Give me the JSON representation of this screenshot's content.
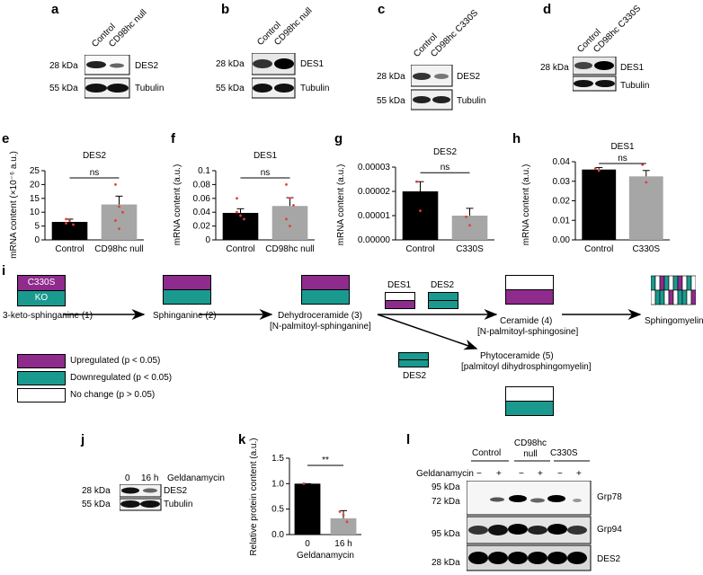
{
  "panels": {
    "a": {
      "letter": "a",
      "lanes": [
        "Control",
        "CD98hc null"
      ],
      "rows": [
        {
          "kda": "28 kDa",
          "protein": "DES2"
        },
        {
          "kda": "55 kDa",
          "protein": "Tubulin"
        }
      ]
    },
    "b": {
      "letter": "b",
      "lanes": [
        "Control",
        "CD98hc null"
      ],
      "rows": [
        {
          "kda": "28 kDa",
          "protein": "DES1"
        },
        {
          "kda": "55 kDa",
          "protein": "Tubulin"
        }
      ]
    },
    "c": {
      "letter": "c",
      "lanes": [
        "Control",
        "CD98hc C330S"
      ],
      "rows": [
        {
          "kda": "28 kDa",
          "protein": "DES2"
        },
        {
          "kda": "55 kDa",
          "protein": "Tubulin"
        }
      ]
    },
    "d": {
      "letter": "d",
      "lanes": [
        "Control",
        "CD98hc C330S"
      ],
      "rows": [
        {
          "kda": "28 kDa",
          "protein": "DES1"
        },
        {
          "kda": "",
          "protein": "Tubulin"
        }
      ]
    },
    "i": {
      "letter": "i",
      "box_c330s": "C330S",
      "box_ko": "KO",
      "steps": [
        "3-keto-sphinganine (1)",
        "Sphinganine (2)",
        "Dehydroceramide (3)",
        "[N-palmitoyl-sphinganine]",
        "Ceramide (4)",
        "[N-palmitoyl-sphingosine]",
        "Phytoceramide (5)",
        "[palmitoyl dihydrosphingomyelin]",
        "Sphingomyelin"
      ],
      "enzymes": {
        "des1": "DES1",
        "des2_top": "DES2",
        "des2_bottom": "DES2"
      },
      "legend": [
        {
          "label": "Upregulated (p < 0.05)",
          "color": "#8e2b8d"
        },
        {
          "label": "Downregulated (p < 0.05)",
          "color": "#1a9a8e"
        },
        {
          "label": "No change (p > 0.05)",
          "color": "#ffffff"
        }
      ]
    },
    "j": {
      "letter": "j",
      "lanes": [
        "0",
        "16 h"
      ],
      "treatment": "Geldanamycin",
      "rows": [
        {
          "kda": "28 kDa",
          "protein": "DES2"
        },
        {
          "kda": "55 kDa",
          "protein": "Tubulin"
        }
      ]
    },
    "l": {
      "letter": "l",
      "groups": [
        "Control",
        "CD98hc null",
        "C330S"
      ],
      "treatment": "Geldanamycin",
      "signs": [
        "−",
        "+",
        "−",
        "+",
        "−",
        "+"
      ],
      "rows": [
        {
          "kda": [
            "95 kDa",
            "72 kDa"
          ],
          "protein": "Grp78"
        },
        {
          "kda": [
            "95 kDa"
          ],
          "protein": "Grp94"
        },
        {
          "kda": [
            "28 kDa"
          ],
          "protein": "DES2"
        }
      ]
    }
  },
  "colors": {
    "purple": "#8e2b8d",
    "teal": "#1a9a8e",
    "bar_black": "#000000",
    "bar_gray": "#a6a6a6",
    "dot_red": "#e0403a"
  },
  "chart_data": [
    {
      "panel": "e",
      "type": "bar",
      "title": "DES2",
      "ylabel": "mRNA content (×10⁻⁶ a.u.)",
      "categories": [
        "Control",
        "CD98hc null"
      ],
      "values": [
        6.5,
        12.8
      ],
      "errors": [
        1.0,
        3.0
      ],
      "ylim": [
        0,
        25
      ],
      "yticks": [
        "0",
        "5",
        "10",
        "15",
        "20",
        "25"
      ],
      "sig": "ns"
    },
    {
      "panel": "f",
      "type": "bar",
      "title": "DES1",
      "ylabel": "mRNA content (a.u.)",
      "categories": [
        "Control",
        "CD98hc null"
      ],
      "values": [
        0.039,
        0.049
      ],
      "errors": [
        0.006,
        0.012
      ],
      "ylim": [
        0,
        0.1
      ],
      "yticks": [
        "0",
        "0.02",
        "0.04",
        "0.06",
        "0.08",
        "0.1"
      ],
      "sig": "ns"
    },
    {
      "panel": "g",
      "type": "bar",
      "title": "DES2",
      "ylabel": "mRNA content (a.u.)",
      "categories": [
        "Control",
        "C330S"
      ],
      "values": [
        2e-05,
        1e-05
      ],
      "errors": [
        4e-06,
        3e-06
      ],
      "ylim": [
        0,
        3e-05
      ],
      "yticks": [
        "0.00000",
        "0.00001",
        "0.00002",
        "0.00003"
      ],
      "sig": "ns"
    },
    {
      "panel": "h",
      "type": "bar",
      "title": "DES1",
      "ylabel": "mRNA content (a.u.)",
      "categories": [
        "Control",
        "C330S"
      ],
      "values": [
        0.036,
        0.0325
      ],
      "errors": [
        0.001,
        0.003
      ],
      "ylim": [
        0,
        0.04
      ],
      "yticks": [
        "0.00",
        "0.01",
        "0.02",
        "0.03",
        "0.04"
      ],
      "sig": "ns"
    },
    {
      "panel": "k",
      "type": "bar",
      "title": "",
      "ylabel": "Relative protein content (a.u.)",
      "xlabel": "Geldanamycin",
      "categories": [
        "0",
        "16 h"
      ],
      "values": [
        1.0,
        0.32
      ],
      "errors": [
        0.0,
        0.15
      ],
      "ylim": [
        0,
        1.5
      ],
      "yticks": [
        "0.0",
        "0.5",
        "1.0",
        "1.5"
      ],
      "sig": "**"
    }
  ]
}
